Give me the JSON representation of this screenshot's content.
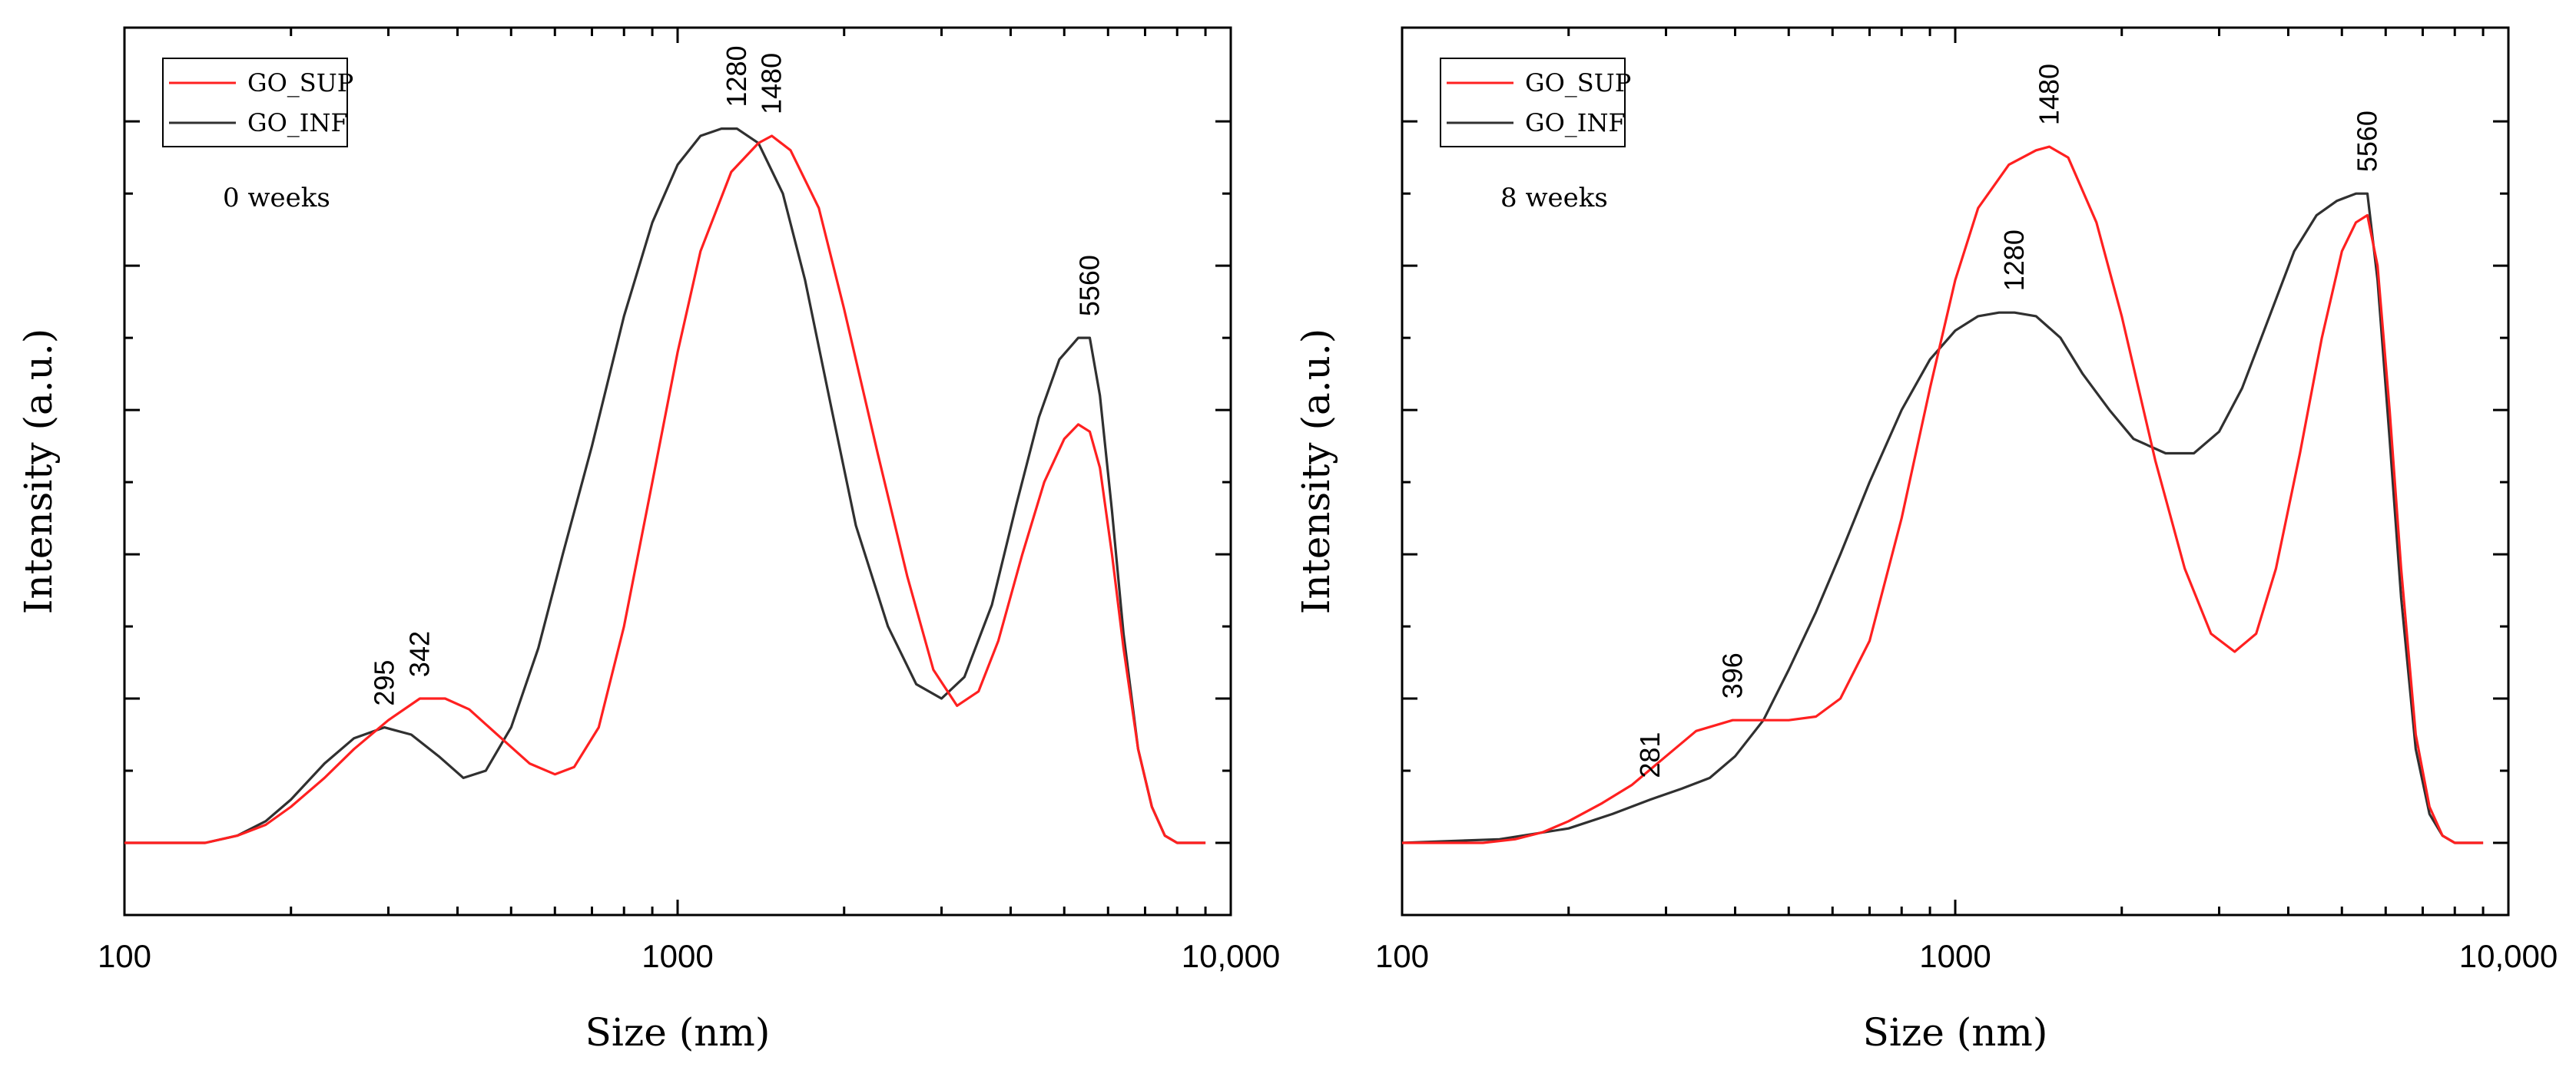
{
  "colors": {
    "GO_SUP": "#ff2020",
    "GO_INF": "#303030"
  },
  "chart_data": [
    {
      "type": "line",
      "annotation": "0 weeks",
      "xlabel": "Size (nm)",
      "ylabel": "Intensity (a.u.)",
      "xscale": "log",
      "xlim": [
        100,
        10000
      ],
      "ylim": [
        -0.1,
        1.13
      ],
      "x_ticks": [
        100,
        1000,
        10000
      ],
      "x_tick_labels": [
        "100",
        "1000",
        "10,000"
      ],
      "legend_position": "top-left",
      "series": [
        {
          "name": "GO_SUP",
          "x": [
            100,
            140,
            160,
            180,
            200,
            230,
            260,
            300,
            342,
            380,
            420,
            480,
            540,
            600,
            650,
            720,
            800,
            900,
            1000,
            1100,
            1250,
            1400,
            1480,
            1600,
            1800,
            2000,
            2300,
            2600,
            2900,
            3200,
            3500,
            3800,
            4200,
            4600,
            5000,
            5300,
            5560,
            5800,
            6100,
            6400,
            6800,
            7200,
            7600,
            8000,
            9000
          ],
          "y": [
            0.0,
            0.0,
            0.01,
            0.025,
            0.05,
            0.09,
            0.13,
            0.17,
            0.2,
            0.2,
            0.185,
            0.145,
            0.11,
            0.095,
            0.105,
            0.16,
            0.3,
            0.5,
            0.68,
            0.82,
            0.93,
            0.97,
            0.98,
            0.96,
            0.88,
            0.74,
            0.54,
            0.37,
            0.24,
            0.19,
            0.21,
            0.28,
            0.4,
            0.5,
            0.56,
            0.58,
            0.57,
            0.52,
            0.4,
            0.27,
            0.13,
            0.05,
            0.01,
            0.0,
            0.0
          ]
        },
        {
          "name": "GO_INF",
          "x": [
            100,
            140,
            160,
            180,
            200,
            230,
            260,
            295,
            330,
            370,
            410,
            450,
            500,
            560,
            620,
            700,
            800,
            900,
            1000,
            1100,
            1200,
            1280,
            1400,
            1550,
            1700,
            1900,
            2100,
            2400,
            2700,
            3000,
            3300,
            3700,
            4100,
            4500,
            4900,
            5300,
            5560,
            5800,
            6100,
            6400,
            6800,
            7200,
            7600,
            8000,
            9000
          ],
          "y": [
            0.0,
            0.0,
            0.01,
            0.03,
            0.06,
            0.11,
            0.145,
            0.16,
            0.15,
            0.12,
            0.09,
            0.1,
            0.16,
            0.27,
            0.4,
            0.55,
            0.73,
            0.86,
            0.94,
            0.98,
            0.99,
            0.99,
            0.97,
            0.9,
            0.78,
            0.6,
            0.44,
            0.3,
            0.22,
            0.2,
            0.23,
            0.33,
            0.47,
            0.59,
            0.67,
            0.7,
            0.7,
            0.62,
            0.46,
            0.29,
            0.13,
            0.05,
            0.01,
            0.0,
            0.0
          ]
        }
      ],
      "peak_labels": [
        {
          "text": "295",
          "x": 295,
          "y": 0.16
        },
        {
          "text": "342",
          "x": 342,
          "y": 0.2
        },
        {
          "text": "1280",
          "x": 1280,
          "y": 0.99
        },
        {
          "text": "1480",
          "x": 1480,
          "y": 0.98
        },
        {
          "text": "5560",
          "x": 5560,
          "y": 0.7
        }
      ]
    },
    {
      "type": "line",
      "annotation": "8 weeks",
      "xlabel": "Size (nm)",
      "ylabel": "Intensity (a.u.)",
      "xscale": "log",
      "xlim": [
        100,
        10000
      ],
      "ylim": [
        -0.1,
        1.13
      ],
      "x_ticks": [
        100,
        1000,
        10000
      ],
      "x_tick_labels": [
        "100",
        "1000",
        "10,000"
      ],
      "legend_position": "top-left",
      "series": [
        {
          "name": "GO_SUP",
          "x": [
            100,
            140,
            160,
            180,
            200,
            230,
            260,
            300,
            340,
            396,
            450,
            500,
            560,
            620,
            700,
            800,
            900,
            1000,
            1100,
            1250,
            1400,
            1480,
            1600,
            1800,
            2000,
            2300,
            2600,
            2900,
            3200,
            3500,
            3800,
            4200,
            4600,
            5000,
            5300,
            5560,
            5800,
            6100,
            6400,
            6800,
            7200,
            7600,
            8000,
            9000
          ],
          "y": [
            0.0,
            0.0,
            0.005,
            0.015,
            0.03,
            0.055,
            0.08,
            0.12,
            0.155,
            0.17,
            0.17,
            0.17,
            0.175,
            0.2,
            0.28,
            0.45,
            0.63,
            0.78,
            0.88,
            0.94,
            0.96,
            0.965,
            0.95,
            0.86,
            0.73,
            0.53,
            0.38,
            0.29,
            0.265,
            0.29,
            0.38,
            0.54,
            0.7,
            0.82,
            0.86,
            0.87,
            0.8,
            0.6,
            0.38,
            0.15,
            0.05,
            0.01,
            0.0,
            0.0
          ]
        },
        {
          "name": "GO_INF",
          "x": [
            100,
            150,
            200,
            240,
            281,
            320,
            360,
            400,
            450,
            500,
            560,
            620,
            700,
            800,
            900,
            1000,
            1100,
            1200,
            1280,
            1400,
            1550,
            1700,
            1900,
            2100,
            2400,
            2700,
            3000,
            3300,
            3700,
            4100,
            4500,
            4900,
            5300,
            5560,
            5800,
            6100,
            6400,
            6800,
            7200,
            7600,
            8000,
            9000
          ],
          "y": [
            0.0,
            0.005,
            0.02,
            0.04,
            0.06,
            0.075,
            0.09,
            0.12,
            0.17,
            0.24,
            0.32,
            0.4,
            0.5,
            0.6,
            0.67,
            0.71,
            0.73,
            0.735,
            0.735,
            0.73,
            0.7,
            0.65,
            0.6,
            0.56,
            0.54,
            0.54,
            0.57,
            0.63,
            0.73,
            0.82,
            0.87,
            0.89,
            0.9,
            0.9,
            0.78,
            0.56,
            0.34,
            0.13,
            0.04,
            0.01,
            0.0,
            0.0
          ]
        }
      ],
      "peak_labels": [
        {
          "text": "281",
          "x": 281,
          "y": 0.06
        },
        {
          "text": "396",
          "x": 396,
          "y": 0.17
        },
        {
          "text": "1280",
          "x": 1280,
          "y": 0.735
        },
        {
          "text": "1480",
          "x": 1480,
          "y": 0.965
        },
        {
          "text": "5560",
          "x": 5560,
          "y": 0.9
        }
      ]
    }
  ]
}
